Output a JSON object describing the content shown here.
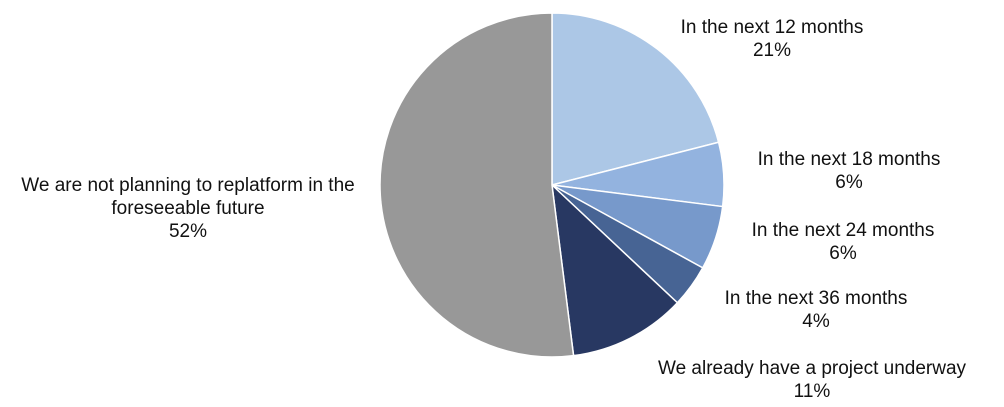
{
  "chart_data": {
    "type": "pie",
    "title": "",
    "start_angle_deg": 0,
    "direction": "clockwise",
    "slices": [
      {
        "label": "In the next 12 months",
        "value": 21,
        "value_label": "21%",
        "color": "#acc7e6"
      },
      {
        "label": "In the next 18 months",
        "value": 6,
        "value_label": "6%",
        "color": "#93b3df"
      },
      {
        "label": "In the next 24 months",
        "value": 6,
        "value_label": "6%",
        "color": "#7799cb"
      },
      {
        "label": "In the next 36 months",
        "value": 4,
        "value_label": "4%",
        "color": "#476494"
      },
      {
        "label": "We already have a project underway",
        "value": 11,
        "value_label": "11%",
        "color": "#283862"
      },
      {
        "label": "We are not planning to replatform in the foreseeable future",
        "value": 52,
        "value_label": "52%",
        "color": "#989898"
      }
    ]
  }
}
